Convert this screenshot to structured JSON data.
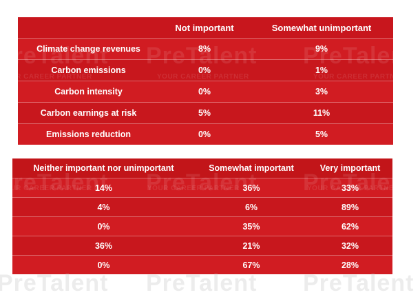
{
  "chart_data": [
    {
      "type": "table",
      "columns": [
        "",
        "Not important",
        "Somewhat unimportant"
      ],
      "rows": [
        {
          "label": "Climate change revenues",
          "values": [
            "8%",
            "9%"
          ]
        },
        {
          "label": "Carbon emissions",
          "values": [
            "0%",
            "1%"
          ]
        },
        {
          "label": "Carbon intensity",
          "values": [
            "0%",
            "3%"
          ]
        },
        {
          "label": "Carbon earnings at risk",
          "values": [
            "5%",
            "11%"
          ]
        },
        {
          "label": "Emissions reduction",
          "values": [
            "0%",
            "5%"
          ]
        }
      ]
    },
    {
      "type": "table",
      "columns": [
        "Neither important nor unimportant",
        "Somewhat important",
        "Very important"
      ],
      "rows": [
        {
          "values": [
            "14%",
            "36%",
            "33%"
          ]
        },
        {
          "values": [
            "4%",
            "6%",
            "89%"
          ]
        },
        {
          "values": [
            "0%",
            "35%",
            "62%"
          ]
        },
        {
          "values": [
            "36%",
            "21%",
            "32%"
          ]
        },
        {
          "values": [
            "0%",
            "67%",
            "28%"
          ]
        }
      ]
    }
  ],
  "watermark": {
    "brand": "PreTalent",
    "tagline": "YOUR CAREER PARTNER"
  },
  "colors": {
    "table_red": "#c8171d",
    "text": "#ffffff"
  }
}
